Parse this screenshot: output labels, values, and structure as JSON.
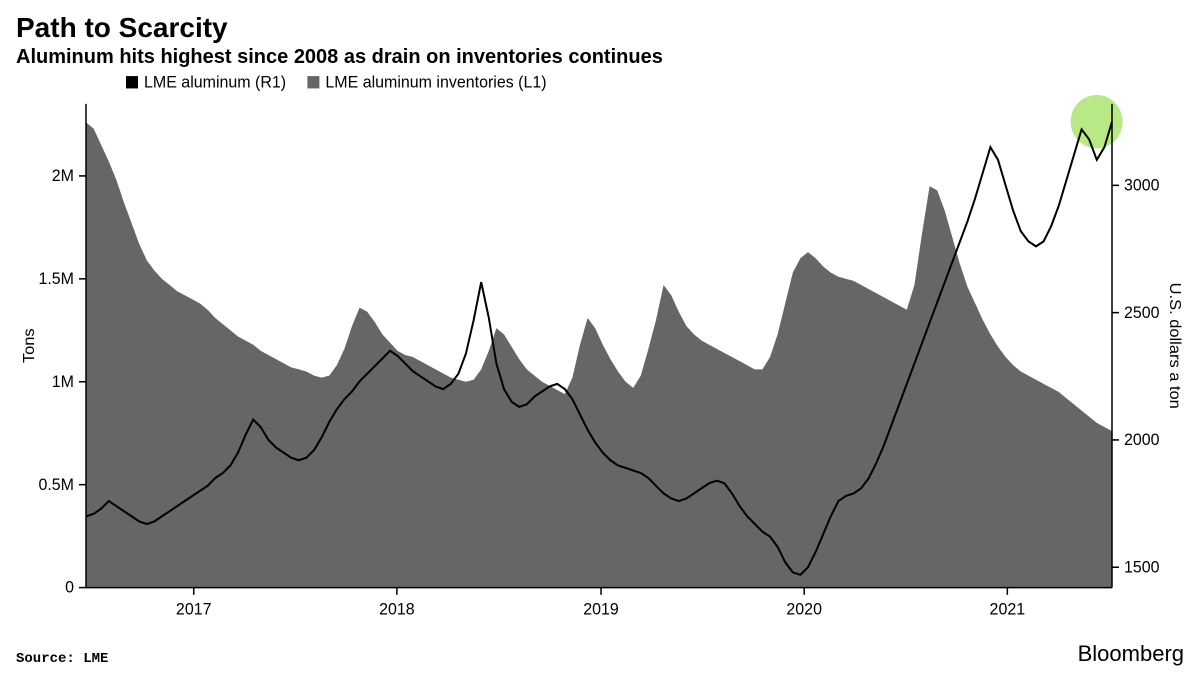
{
  "title": "Path to Scarcity",
  "subtitle": "Aluminum hits highest since 2008 as drain on inventories continues",
  "source": "Source: LME",
  "brand": "Bloomberg",
  "chart": {
    "type": "dual-axis-area-line",
    "background_color": "#ffffff",
    "area_color": "#666666",
    "line_color": "#000000",
    "line_width": 2,
    "highlight_circle": {
      "color": "#b8e986",
      "radius": 26,
      "x_ratio": 0.985,
      "y_price": 3250
    },
    "legend": [
      {
        "label": "LME aluminum (R1)",
        "swatch": "#000000",
        "type": "square"
      },
      {
        "label": "LME aluminum inventories (L1)",
        "swatch": "#666666",
        "type": "square"
      }
    ],
    "x_axis": {
      "ticks": [
        "2017",
        "2018",
        "2019",
        "2020",
        "2021"
      ],
      "tick_positions": [
        0.105,
        0.303,
        0.502,
        0.7,
        0.898
      ]
    },
    "y_left": {
      "label": "Tons",
      "ticks": [
        0,
        500000,
        1000000,
        1500000,
        2000000
      ],
      "tick_labels": [
        "0",
        "0.5M",
        "1M",
        "1.5M",
        "2M"
      ],
      "lim": [
        0,
        2350000
      ]
    },
    "y_right": {
      "label": "U.S. dollars a ton",
      "ticks": [
        1500,
        2000,
        2500,
        3000
      ],
      "tick_labels": [
        "1500",
        "2000",
        "2500",
        "3000"
      ],
      "lim": [
        1420,
        3320
      ]
    },
    "inventory_series": [
      2260000,
      2230000,
      2150000,
      2070000,
      1980000,
      1870000,
      1770000,
      1670000,
      1590000,
      1540000,
      1500000,
      1470000,
      1440000,
      1420000,
      1400000,
      1380000,
      1350000,
      1310000,
      1280000,
      1250000,
      1220000,
      1200000,
      1180000,
      1150000,
      1130000,
      1110000,
      1090000,
      1070000,
      1060000,
      1050000,
      1030000,
      1020000,
      1030000,
      1080000,
      1160000,
      1270000,
      1360000,
      1340000,
      1290000,
      1230000,
      1190000,
      1150000,
      1130000,
      1120000,
      1100000,
      1080000,
      1060000,
      1040000,
      1020000,
      1010000,
      1000000,
      1010000,
      1060000,
      1150000,
      1260000,
      1230000,
      1170000,
      1110000,
      1060000,
      1030000,
      1000000,
      980000,
      960000,
      940000,
      1020000,
      1180000,
      1310000,
      1260000,
      1180000,
      1110000,
      1050000,
      1000000,
      970000,
      1030000,
      1160000,
      1300000,
      1470000,
      1420000,
      1340000,
      1270000,
      1230000,
      1200000,
      1180000,
      1160000,
      1140000,
      1120000,
      1100000,
      1080000,
      1060000,
      1060000,
      1120000,
      1230000,
      1380000,
      1530000,
      1600000,
      1630000,
      1600000,
      1560000,
      1530000,
      1510000,
      1500000,
      1490000,
      1470000,
      1450000,
      1430000,
      1410000,
      1390000,
      1370000,
      1350000,
      1470000,
      1720000,
      1950000,
      1930000,
      1830000,
      1700000,
      1570000,
      1460000,
      1380000,
      1300000,
      1230000,
      1170000,
      1120000,
      1080000,
      1050000,
      1030000,
      1010000,
      990000,
      970000,
      950000,
      920000,
      890000,
      860000,
      830000,
      800000,
      780000,
      760000
    ],
    "price_series": [
      1700,
      1710,
      1730,
      1760,
      1740,
      1720,
      1700,
      1680,
      1670,
      1680,
      1700,
      1720,
      1740,
      1760,
      1780,
      1800,
      1820,
      1850,
      1870,
      1900,
      1950,
      2020,
      2080,
      2050,
      2000,
      1970,
      1950,
      1930,
      1920,
      1930,
      1960,
      2010,
      2070,
      2120,
      2160,
      2190,
      2230,
      2260,
      2290,
      2320,
      2350,
      2330,
      2300,
      2270,
      2250,
      2230,
      2210,
      2200,
      2220,
      2260,
      2340,
      2470,
      2620,
      2480,
      2300,
      2200,
      2150,
      2130,
      2140,
      2170,
      2190,
      2210,
      2220,
      2200,
      2160,
      2100,
      2040,
      1990,
      1950,
      1920,
      1900,
      1890,
      1880,
      1870,
      1850,
      1820,
      1790,
      1770,
      1760,
      1770,
      1790,
      1810,
      1830,
      1840,
      1830,
      1790,
      1740,
      1700,
      1670,
      1640,
      1620,
      1580,
      1520,
      1480,
      1470,
      1500,
      1560,
      1630,
      1700,
      1760,
      1780,
      1790,
      1810,
      1850,
      1910,
      1980,
      2060,
      2140,
      2220,
      2300,
      2380,
      2460,
      2540,
      2620,
      2700,
      2780,
      2860,
      2950,
      3050,
      3150,
      3100,
      3000,
      2900,
      2820,
      2780,
      2760,
      2780,
      2840,
      2920,
      3020,
      3120,
      3220,
      3180,
      3100,
      3150,
      3250
    ]
  }
}
